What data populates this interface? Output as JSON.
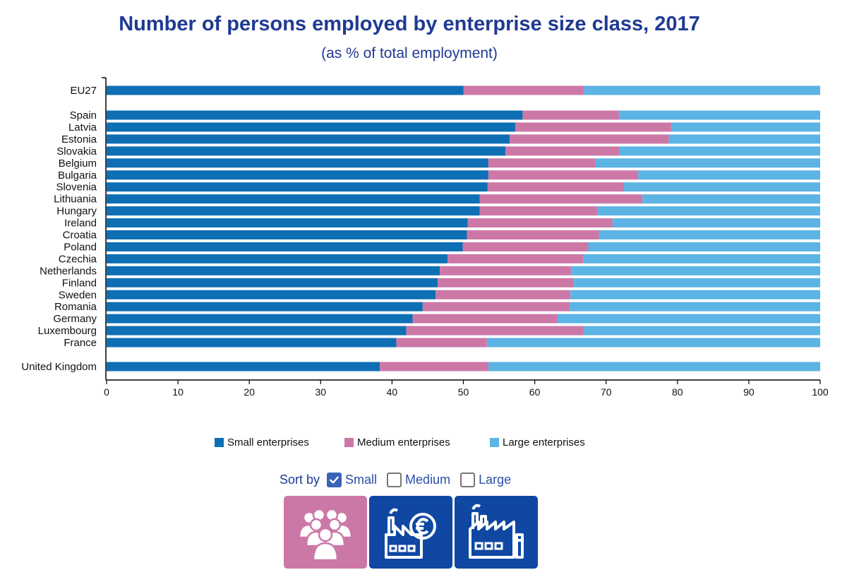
{
  "title": "Number of persons employed by enterprise size class, 2017",
  "subtitle": "(as % of total employment)",
  "colors": {
    "small": "#0e6fb4",
    "medium": "#cc78a7",
    "large": "#5cb4e4",
    "title": "#1f3a93",
    "button_active": "#cc78a7",
    "button": "#0f47a3"
  },
  "legend": [
    {
      "key": "small",
      "label": "Small enterprises"
    },
    {
      "key": "medium",
      "label": "Medium enterprises"
    },
    {
      "key": "large",
      "label": "Large enterprises"
    }
  ],
  "sort": {
    "label": "Sort by",
    "options": [
      {
        "label": "Small",
        "checked": true
      },
      {
        "label": "Medium",
        "checked": false
      },
      {
        "label": "Large",
        "checked": false
      }
    ]
  },
  "icon_buttons": [
    {
      "icon": "people-group-icon",
      "active": true
    },
    {
      "icon": "factory-euro-icon",
      "active": false
    },
    {
      "icon": "large-factory-icon",
      "active": false
    }
  ],
  "chart_data": {
    "type": "bar",
    "orientation": "horizontal",
    "stacked": true,
    "title": "Number of persons employed by enterprise size class, 2017",
    "subtitle": "(as % of total employment)",
    "xlim": [
      0,
      100
    ],
    "xticks": [
      0,
      10,
      20,
      30,
      40,
      50,
      60,
      70,
      80,
      90,
      100
    ],
    "grid": false,
    "legend_position": "bottom",
    "categories": [
      "EU27",
      "Spain",
      "Latvia",
      "Estonia",
      "Slovakia",
      "Belgium",
      "Bulgaria",
      "Slovenia",
      "Lithuania",
      "Hungary",
      "Ireland",
      "Croatia",
      "Poland",
      "Czechia",
      "Netherlands",
      "Finland",
      "Sweden",
      "Romania",
      "Germany",
      "Luxembourg",
      "France",
      "United Kingdom"
    ],
    "series": [
      {
        "name": "Small enterprises",
        "values": [
          50.0,
          58.3,
          57.3,
          56.5,
          55.9,
          53.5,
          53.5,
          53.4,
          52.3,
          52.3,
          50.6,
          50.5,
          49.9,
          47.8,
          46.7,
          46.4,
          46.1,
          44.3,
          42.9,
          42.0,
          40.6,
          38.3
        ]
      },
      {
        "name": "Medium enterprises",
        "values": [
          16.9,
          13.5,
          21.9,
          22.3,
          16.0,
          15.0,
          21.0,
          19.1,
          22.8,
          16.5,
          20.3,
          18.5,
          17.6,
          19.0,
          18.4,
          19.1,
          18.9,
          20.6,
          20.3,
          24.9,
          12.7,
          15.2
        ]
      },
      {
        "name": "Large enterprises",
        "values": [
          33.1,
          28.2,
          20.8,
          21.2,
          28.1,
          31.5,
          25.5,
          27.5,
          24.9,
          31.2,
          29.1,
          31.0,
          32.5,
          33.2,
          34.9,
          34.5,
          35.0,
          35.1,
          36.8,
          33.1,
          46.7,
          46.5
        ]
      }
    ]
  }
}
